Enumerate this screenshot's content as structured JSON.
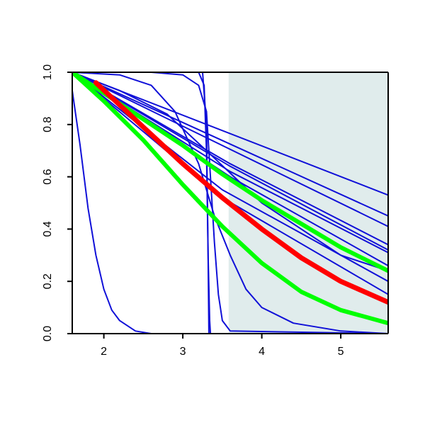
{
  "chart_data": {
    "type": "line",
    "title": "",
    "xlabel": "",
    "ylabel": "",
    "xlim": [
      1.6,
      5.6
    ],
    "ylim": [
      0,
      1
    ],
    "x_ticks": [
      2,
      3,
      4,
      5
    ],
    "x_tick_labels": [
      "2",
      "3",
      "4",
      "5"
    ],
    "y_ticks": [
      0,
      0.2,
      0.4,
      0.6,
      0.8,
      1.0
    ],
    "y_tick_labels": [
      "0.0",
      "0.2",
      "0.4",
      "0.6",
      "0.8",
      "1.0"
    ],
    "grid": false,
    "legend": "none",
    "shaded_region": {
      "x_start": 3.58,
      "x_end": 5.6,
      "color": "#e0ecec"
    },
    "colors": {
      "blue": "#1010d8",
      "red": "#ff0000",
      "green": "#00ff00"
    },
    "series": [
      {
        "color": "#1010d8",
        "points": [
          [
            1.6,
            1.0
          ],
          [
            5.6,
            0.53
          ]
        ]
      },
      {
        "color": "#1010d8",
        "points": [
          [
            1.6,
            1.0
          ],
          [
            5.6,
            0.45
          ]
        ]
      },
      {
        "color": "#1010d8",
        "points": [
          [
            1.6,
            1.0
          ],
          [
            5.6,
            0.41
          ]
        ]
      },
      {
        "color": "#1010d8",
        "points": [
          [
            1.6,
            1.0
          ],
          [
            3.6,
            0.65
          ],
          [
            5.6,
            0.34
          ]
        ]
      },
      {
        "color": "#1010d8",
        "points": [
          [
            1.6,
            1.0
          ],
          [
            3.6,
            0.64
          ],
          [
            5.6,
            0.32
          ]
        ]
      },
      {
        "color": "#1010d8",
        "points": [
          [
            1.6,
            1.0
          ],
          [
            3.6,
            0.62
          ],
          [
            5.6,
            0.31
          ]
        ]
      },
      {
        "color": "#1010d8",
        "points": [
          [
            1.6,
            1.0
          ],
          [
            3.6,
            0.6
          ],
          [
            5.6,
            0.26
          ]
        ]
      },
      {
        "color": "#1010d8",
        "points": [
          [
            1.6,
            1.0
          ],
          [
            3.5,
            0.55
          ],
          [
            5.6,
            0.2
          ]
        ]
      },
      {
        "color": "#1010d8",
        "points": [
          [
            1.6,
            1.0
          ],
          [
            3.5,
            0.52
          ],
          [
            5.6,
            0.15
          ]
        ]
      },
      {
        "color": "#1010d8",
        "points": [
          [
            1.6,
            1.0
          ],
          [
            2.2,
            0.93
          ],
          [
            2.8,
            0.84
          ],
          [
            3.3,
            0.7
          ],
          [
            4.0,
            0.5
          ],
          [
            5.0,
            0.3
          ],
          [
            5.6,
            0.24
          ]
        ]
      },
      {
        "color": "#1010d8",
        "points": [
          [
            1.6,
            1.0
          ],
          [
            2.2,
            0.99
          ],
          [
            2.6,
            0.95
          ],
          [
            2.9,
            0.85
          ],
          [
            3.2,
            0.65
          ],
          [
            3.4,
            0.45
          ],
          [
            3.6,
            0.3
          ],
          [
            3.8,
            0.17
          ],
          [
            4.0,
            0.1
          ],
          [
            4.4,
            0.04
          ],
          [
            5.0,
            0.01
          ],
          [
            5.6,
            0.0
          ]
        ]
      },
      {
        "color": "#1010d8",
        "points": [
          [
            1.6,
            1.0
          ],
          [
            2.6,
            1.0
          ],
          [
            3.0,
            0.99
          ],
          [
            3.2,
            0.95
          ],
          [
            3.3,
            0.85
          ],
          [
            3.35,
            0.6
          ],
          [
            3.4,
            0.35
          ],
          [
            3.45,
            0.15
          ],
          [
            3.5,
            0.05
          ],
          [
            3.6,
            0.01
          ],
          [
            5.6,
            0.0
          ]
        ]
      },
      {
        "color": "#1010d8",
        "points": [
          [
            1.6,
            1.0
          ],
          [
            3.0,
            1.0
          ],
          [
            3.2,
            1.0
          ],
          [
            3.27,
            0.95
          ],
          [
            3.3,
            0.7
          ],
          [
            3.32,
            0.3
          ],
          [
            3.34,
            0.05
          ],
          [
            3.35,
            0.0
          ],
          [
            5.6,
            0.0
          ]
        ]
      },
      {
        "color": "#1010d8",
        "points": [
          [
            1.6,
            1.0
          ],
          [
            3.0,
            1.0
          ],
          [
            3.25,
            1.0
          ],
          [
            3.3,
            0.8
          ],
          [
            3.32,
            0.3
          ],
          [
            3.33,
            0.0
          ],
          [
            5.6,
            0.0
          ]
        ]
      },
      {
        "color": "#1010d8",
        "points": [
          [
            1.6,
            0.93
          ],
          [
            1.7,
            0.72
          ],
          [
            1.8,
            0.48
          ],
          [
            1.9,
            0.3
          ],
          [
            2.0,
            0.17
          ],
          [
            2.1,
            0.09
          ],
          [
            2.2,
            0.05
          ],
          [
            2.4,
            0.01
          ],
          [
            2.6,
            0.0
          ],
          [
            5.6,
            0.0
          ]
        ]
      },
      {
        "color": "#00ff00",
        "width": 6,
        "points": [
          [
            1.6,
            1.0
          ],
          [
            2.0,
            0.92
          ],
          [
            2.5,
            0.82
          ],
          [
            3.0,
            0.72
          ],
          [
            3.5,
            0.61
          ],
          [
            4.0,
            0.51
          ],
          [
            4.5,
            0.42
          ],
          [
            5.0,
            0.33
          ],
          [
            5.6,
            0.24
          ]
        ]
      },
      {
        "color": "#00ff00",
        "width": 6,
        "points": [
          [
            1.6,
            1.0
          ],
          [
            2.0,
            0.89
          ],
          [
            2.5,
            0.74
          ],
          [
            3.0,
            0.57
          ],
          [
            3.5,
            0.41
          ],
          [
            4.0,
            0.27
          ],
          [
            4.5,
            0.16
          ],
          [
            5.0,
            0.09
          ],
          [
            5.6,
            0.04
          ]
        ]
      },
      {
        "color": "#ff0000",
        "width": 7,
        "points": [
          [
            1.9,
            0.96
          ],
          [
            2.5,
            0.79
          ],
          [
            3.0,
            0.65
          ],
          [
            3.5,
            0.52
          ],
          [
            4.0,
            0.4
          ],
          [
            4.5,
            0.29
          ],
          [
            5.0,
            0.2
          ],
          [
            5.6,
            0.12
          ]
        ]
      }
    ]
  }
}
